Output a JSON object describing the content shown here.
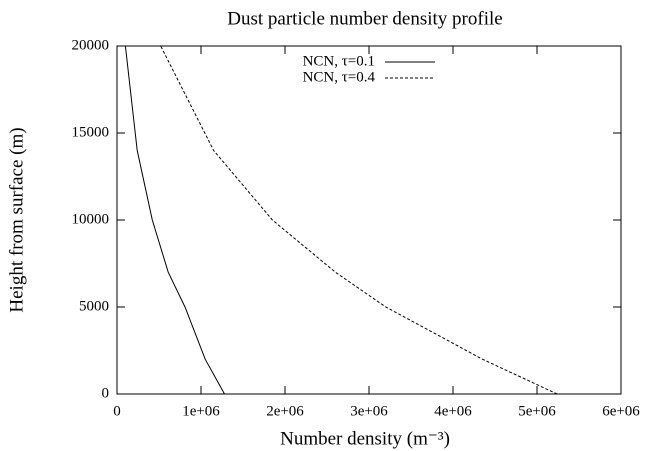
{
  "chart_data": {
    "type": "line",
    "title": "Dust particle number density profile",
    "x_label": "Number density (m⁻³)",
    "y_label": "Height from surface (m)",
    "xlim": [
      0,
      6000000
    ],
    "ylim": [
      0,
      20000
    ],
    "xticks": [
      0,
      {
        "value": 1000000,
        "label": "1e+06"
      },
      {
        "value": 2000000,
        "label": "2e+06"
      },
      {
        "value": 3000000,
        "label": "3e+06"
      },
      {
        "value": 4000000,
        "label": "4e+06"
      },
      {
        "value": 5000000,
        "label": "5e+06"
      },
      {
        "value": 6000000,
        "label": "6e+06"
      }
    ],
    "yticks": [
      0,
      5000,
      10000,
      15000,
      20000
    ],
    "legend": "top-center",
    "series": [
      {
        "name": "NCN, τ=0.1",
        "color": "#000000",
        "dash": "solid",
        "x": [
          1280000,
          1050000,
          810000,
          610000,
          420000,
          240000,
          100000
        ],
        "values": [
          0,
          2000,
          5000,
          7000,
          10000,
          14000,
          20000
        ]
      },
      {
        "name": "NCN, τ=0.4",
        "color": "#000000",
        "dash": "dashed",
        "x": [
          5240000,
          4350000,
          3200000,
          2600000,
          1850000,
          1150000,
          520000
        ],
        "values": [
          0,
          2000,
          5000,
          7000,
          10000,
          14000,
          20000
        ]
      }
    ]
  }
}
